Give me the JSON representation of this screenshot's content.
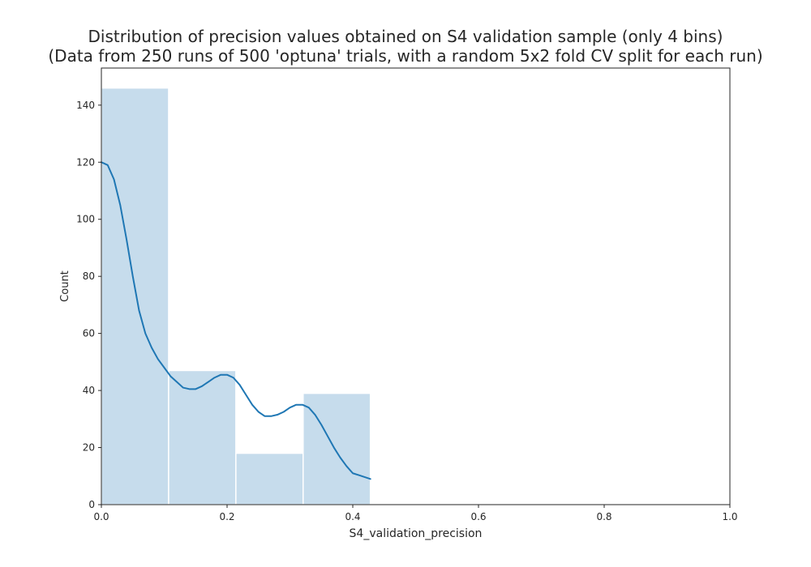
{
  "chart_data": {
    "type": "bar",
    "title_lines": [
      "Distribution of precision values obtained on S4 validation sample (only 4 bins)",
      "(Data from 250 runs of 500 'optuna' trials, with a random 5x2 fold CV split for each run)"
    ],
    "xlabel": "S4_validation_precision",
    "ylabel": "Count",
    "xlim": [
      0.0,
      1.0
    ],
    "ylim": [
      0,
      153
    ],
    "x_ticks": [
      0.0,
      0.2,
      0.4,
      0.6,
      0.8,
      1.0
    ],
    "x_tick_labels": [
      "0.0",
      "0.2",
      "0.4",
      "0.6",
      "0.8",
      "1.0"
    ],
    "y_ticks": [
      0,
      20,
      40,
      60,
      80,
      100,
      120,
      140
    ],
    "y_tick_labels": [
      "0",
      "20",
      "40",
      "60",
      "80",
      "100",
      "120",
      "140"
    ],
    "bins": [
      {
        "x0": 0.0,
        "x1": 0.107,
        "count": 146
      },
      {
        "x0": 0.107,
        "x1": 0.214,
        "count": 47
      },
      {
        "x0": 0.214,
        "x1": 0.321,
        "count": 18
      },
      {
        "x0": 0.321,
        "x1": 0.428,
        "count": 39
      }
    ],
    "kde": {
      "x": [
        0.0,
        0.01,
        0.02,
        0.03,
        0.04,
        0.05,
        0.06,
        0.07,
        0.08,
        0.09,
        0.1,
        0.11,
        0.12,
        0.13,
        0.14,
        0.15,
        0.16,
        0.17,
        0.18,
        0.19,
        0.2,
        0.21,
        0.22,
        0.23,
        0.24,
        0.25,
        0.26,
        0.27,
        0.28,
        0.29,
        0.3,
        0.31,
        0.32,
        0.33,
        0.34,
        0.35,
        0.36,
        0.37,
        0.38,
        0.39,
        0.4,
        0.41,
        0.428
      ],
      "y": [
        120,
        119,
        114,
        105,
        93,
        80,
        68,
        60,
        55,
        51,
        48,
        45,
        43,
        41,
        40.5,
        40.5,
        41.5,
        43,
        44.5,
        45.5,
        45.5,
        44.5,
        42,
        38.5,
        35,
        32.5,
        31,
        31,
        31.5,
        32.5,
        34,
        35,
        35,
        34,
        31.5,
        28,
        24,
        20,
        16.5,
        13.5,
        11,
        10.3,
        9
      ]
    },
    "colors": {
      "bar_fill": "#c6dcec",
      "bar_edge": "#ffffff",
      "kde_line": "#1f77b4",
      "axes": "#262626"
    },
    "grid": false
  }
}
